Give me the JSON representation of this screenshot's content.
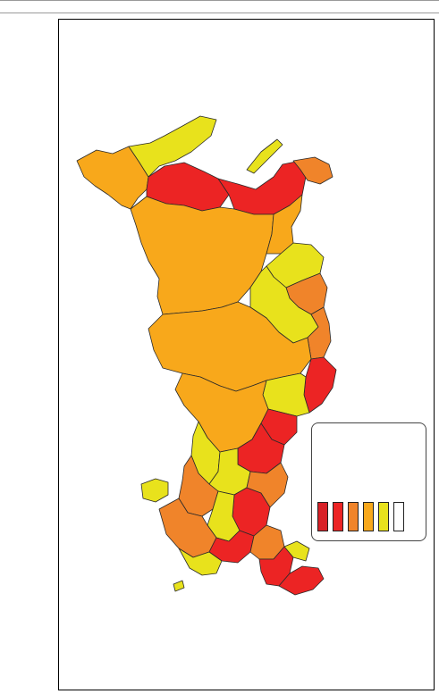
{
  "legend": {
    "title": "",
    "classes": [
      {
        "color": "#d82127"
      },
      {
        "color": "#ec2424"
      },
      {
        "color": "#f0842a"
      },
      {
        "color": "#f8a81b"
      },
      {
        "color": "#e8e21c"
      },
      {
        "color": "#ffffff"
      }
    ]
  },
  "palette": {
    "dark_red": "#d82127",
    "red": "#ec2424",
    "orange": "#f0842a",
    "amber": "#f8a81b",
    "yellow": "#e8e21c",
    "border": "#2a2a2a"
  }
}
